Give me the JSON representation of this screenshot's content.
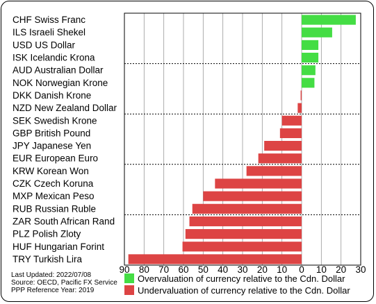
{
  "chart_data": {
    "type": "bar",
    "orientation": "horizontal",
    "categories": [
      "CHF Swiss Franc",
      "ILS Israeli Shekel",
      "USD US Dollar",
      "ISK Icelandic Krona",
      "AUD Australian Dollar",
      "NOK Norwegian Krone",
      "DKK Danish Krone",
      "NZD New Zealand Dollar",
      "SEK Swedish Krone",
      "GBP British Pound",
      "JPY Japanese Yen",
      "EUR European Euro",
      "KRW Korean Won",
      "CZK Czech Koruna",
      "MXP Mexican Peso",
      "RUB Russian Ruble",
      "ZAR South African Rand",
      "PLZ Polish Zloty",
      "HUF Hungarian Forint",
      "TRY Turkish Lira"
    ],
    "values": [
      27.5,
      15.5,
      8.5,
      8.5,
      7,
      6.5,
      -0.5,
      -2,
      -10,
      -11,
      -19,
      -22,
      -28,
      -44,
      -50,
      -55.5,
      -57,
      -59,
      -60.5,
      -88
    ],
    "xlim": [
      -90,
      30
    ],
    "xticks": [
      "90",
      "80",
      "70",
      "60",
      "50",
      "40",
      "30",
      "20",
      "10",
      "0",
      "10",
      "20",
      "30"
    ],
    "xtick_values": [
      -90,
      -80,
      -70,
      -60,
      -50,
      -40,
      -30,
      -20,
      -10,
      0,
      10,
      20,
      30
    ],
    "group_separators_after": [
      3,
      7,
      11,
      15
    ],
    "grid": "vertical",
    "colors": {
      "over": "#44dd44",
      "under": "#dd4444"
    },
    "legend": [
      {
        "label": "Overvaluation of currency relative to the Cdn. Dollar",
        "color": "#44dd44"
      },
      {
        "label": "Undervaluation of currency relative to the Cdn. Dollar",
        "color": "#dd4444"
      }
    ],
    "legend_position": "bottom-right"
  },
  "footer": {
    "updated": "Last Updated: 2022/07/08",
    "source": "Source: OECD, Pacific FX Service",
    "ppp_year": "PPP Reference Year: 2019"
  }
}
